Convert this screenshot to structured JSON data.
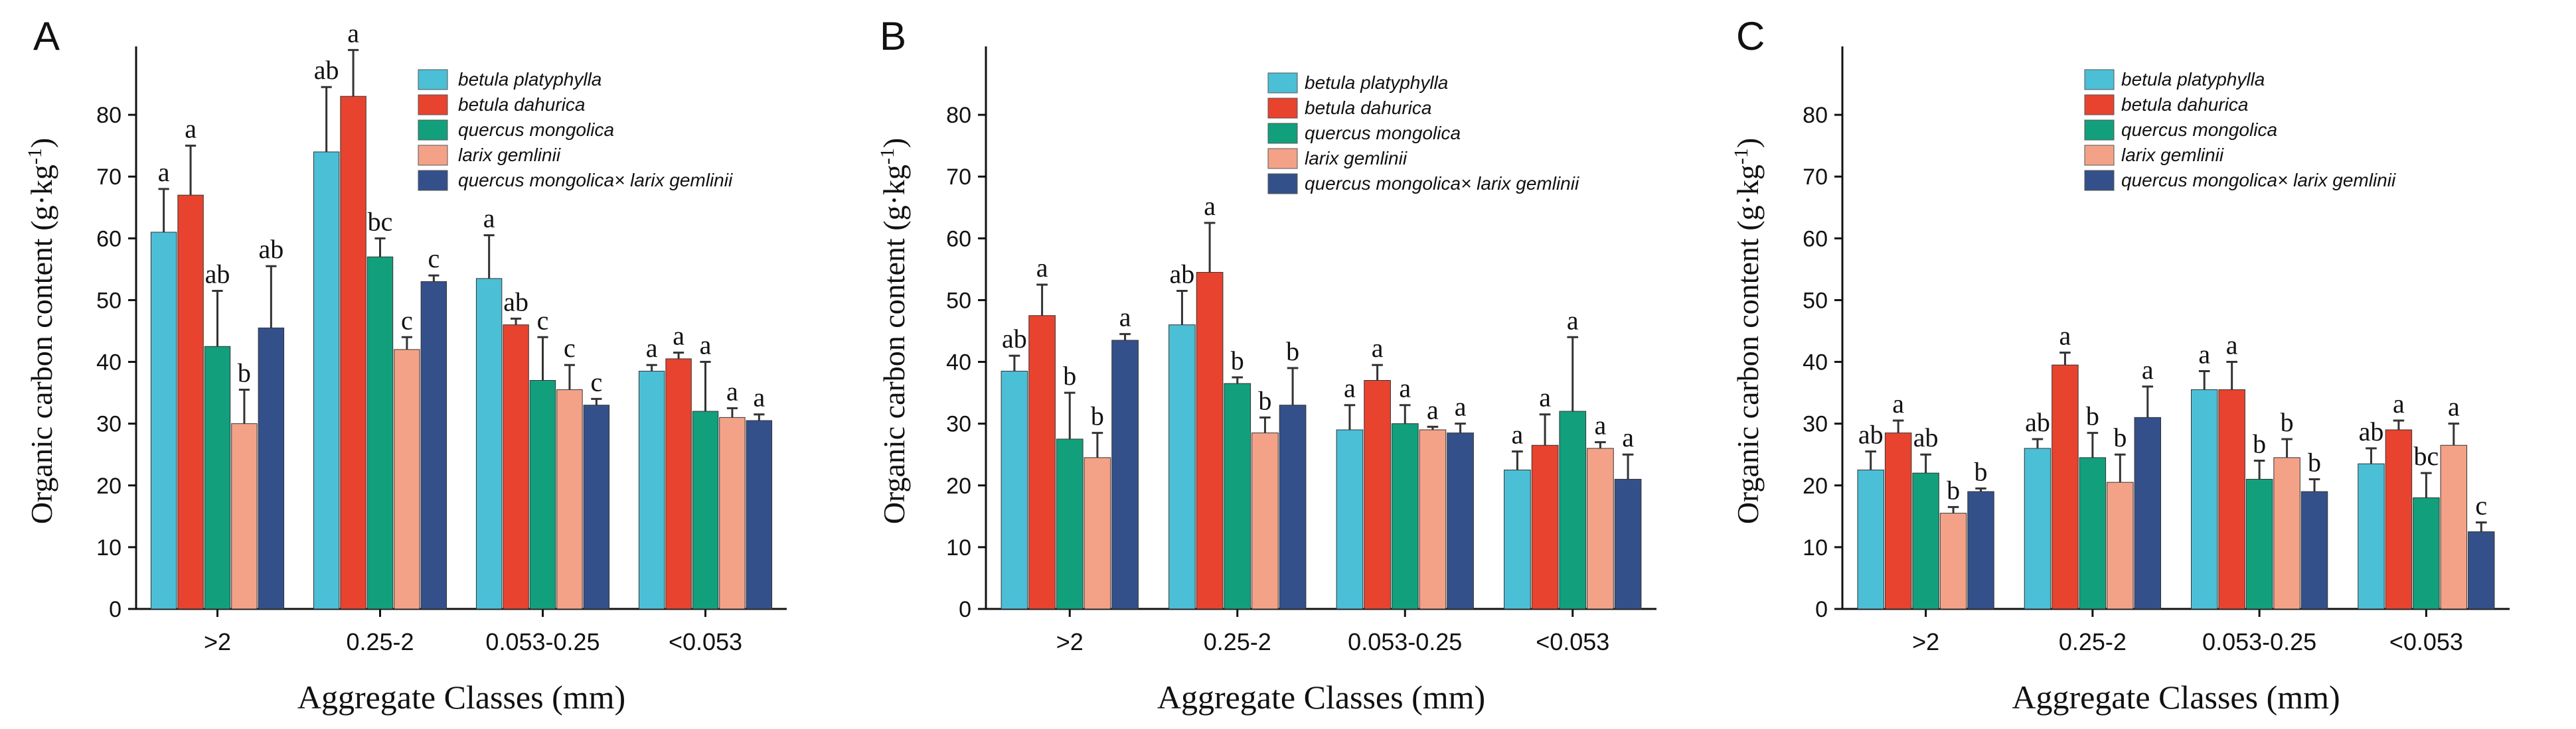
{
  "chart_data": [
    {
      "type": "bar",
      "panel_label": "A",
      "categories": [
        ">2",
        "0.25-2",
        "0.053-0.25",
        "<0.053"
      ],
      "xlabel": "Aggregate Classes (mm)",
      "ylabel": "Organic carbon content (g·kg",
      "ylabel_sup": "-1",
      "ylabel_close": ")",
      "ylim": [
        0,
        90
      ],
      "yticks": [
        0,
        10,
        20,
        30,
        40,
        50,
        60,
        70,
        80
      ],
      "legend_position": "top-right",
      "series": [
        {
          "name": "betula platyphylla",
          "color": "#4bbfd6",
          "values": [
            61,
            74,
            53.5,
            38.5
          ],
          "errors": [
            7,
            10.5,
            7,
            1
          ],
          "labels": [
            "a",
            "ab",
            "a",
            "a"
          ]
        },
        {
          "name": "betula dahurica",
          "color": "#e8432e",
          "values": [
            67,
            83,
            46,
            40.5
          ],
          "errors": [
            8,
            7.5,
            1,
            1
          ],
          "labels": [
            "a",
            "a",
            "ab",
            "a"
          ]
        },
        {
          "name": "quercus mongolica",
          "color": "#12a07c",
          "values": [
            42.5,
            57,
            37,
            32
          ],
          "errors": [
            9,
            3,
            7,
            8
          ],
          "labels": [
            "ab",
            "bc",
            "c",
            "a"
          ]
        },
        {
          "name": "larix gemlinii",
          "color": "#f3a288",
          "values": [
            30,
            42,
            35.5,
            31
          ],
          "errors": [
            5.5,
            2,
            4,
            1.5
          ],
          "labels": [
            "b",
            "c",
            "c",
            "a"
          ]
        },
        {
          "name": "quercus mongolica× larix gemlinii",
          "color": "#34508a",
          "values": [
            45.5,
            53,
            33,
            30.5
          ],
          "errors": [
            10,
            1,
            1,
            1
          ],
          "labels": [
            "ab",
            "c",
            "c",
            "a"
          ]
        }
      ]
    },
    {
      "type": "bar",
      "panel_label": "B",
      "categories": [
        ">2",
        "0.25-2",
        "0.053-0.25",
        "<0.053"
      ],
      "xlabel": "Aggregate Classes (mm)",
      "ylabel": "Organic carbon content (g·kg",
      "ylabel_sup": "-1",
      "ylabel_close": ")",
      "ylim": [
        0,
        90
      ],
      "yticks": [
        0,
        10,
        20,
        30,
        40,
        50,
        60,
        70,
        80
      ],
      "legend_position": "top-right",
      "series": [
        {
          "name": "betula platyphylla",
          "color": "#4bbfd6",
          "values": [
            38.5,
            46,
            29,
            22.5
          ],
          "errors": [
            2.5,
            5.5,
            4,
            3
          ],
          "labels": [
            "ab",
            "ab",
            "a",
            "a"
          ]
        },
        {
          "name": "betula dahurica",
          "color": "#e8432e",
          "values": [
            47.5,
            54.5,
            37,
            26.5
          ],
          "errors": [
            5,
            8,
            2.5,
            5
          ],
          "labels": [
            "a",
            "a",
            "a",
            "a"
          ]
        },
        {
          "name": "quercus mongolica",
          "color": "#12a07c",
          "values": [
            27.5,
            36.5,
            30,
            32
          ],
          "errors": [
            7.5,
            1,
            3,
            12
          ],
          "labels": [
            "b",
            "b",
            "a",
            "a"
          ]
        },
        {
          "name": "larix gemlinii",
          "color": "#f3a288",
          "values": [
            24.5,
            28.5,
            29,
            26
          ],
          "errors": [
            4,
            2.5,
            0.5,
            1
          ],
          "labels": [
            "b",
            "b",
            "a",
            "a"
          ]
        },
        {
          "name": "quercus mongolica× larix gemlinii",
          "color": "#34508a",
          "values": [
            43.5,
            33,
            28.5,
            21
          ],
          "errors": [
            1,
            6,
            1.5,
            4
          ],
          "labels": [
            "a",
            "b",
            "a",
            "a"
          ]
        }
      ]
    },
    {
      "type": "bar",
      "panel_label": "C",
      "categories": [
        ">2",
        "0.25-2",
        "0.053-0.25",
        "<0.053"
      ],
      "xlabel": "Aggregate Classes (mm)",
      "ylabel": "Organic carbon content (g·kg",
      "ylabel_sup": "-1",
      "ylabel_close": ")",
      "ylim": [
        0,
        90
      ],
      "yticks": [
        0,
        10,
        20,
        30,
        40,
        50,
        60,
        70,
        80
      ],
      "legend_position": "top-right",
      "series": [
        {
          "name": "betula platyphylla",
          "color": "#4bbfd6",
          "values": [
            22.5,
            26,
            35.5,
            23.5
          ],
          "errors": [
            3,
            1.5,
            3,
            2.5
          ],
          "labels": [
            "ab",
            "ab",
            "a",
            "ab"
          ]
        },
        {
          "name": "betula dahurica",
          "color": "#e8432e",
          "values": [
            28.5,
            39.5,
            35.5,
            29
          ],
          "errors": [
            2,
            2,
            4.5,
            1.5
          ],
          "labels": [
            "a",
            "a",
            "a",
            "a"
          ]
        },
        {
          "name": "quercus mongolica",
          "color": "#12a07c",
          "values": [
            22,
            24.5,
            21,
            18
          ],
          "errors": [
            3,
            4,
            3,
            4
          ],
          "labels": [
            "ab",
            "b",
            "b",
            "bc"
          ]
        },
        {
          "name": "larix gemlinii",
          "color": "#f3a288",
          "values": [
            15.5,
            20.5,
            24.5,
            26.5
          ],
          "errors": [
            1,
            4.5,
            3,
            3.5
          ],
          "labels": [
            "b",
            "b",
            "b",
            "a"
          ]
        },
        {
          "name": "quercus mongolica× larix gemlinii",
          "color": "#34508a",
          "values": [
            19,
            31,
            19,
            12.5
          ],
          "errors": [
            0.5,
            5,
            2,
            1.5
          ],
          "labels": [
            "b",
            "a",
            "b",
            "c"
          ]
        }
      ]
    }
  ]
}
